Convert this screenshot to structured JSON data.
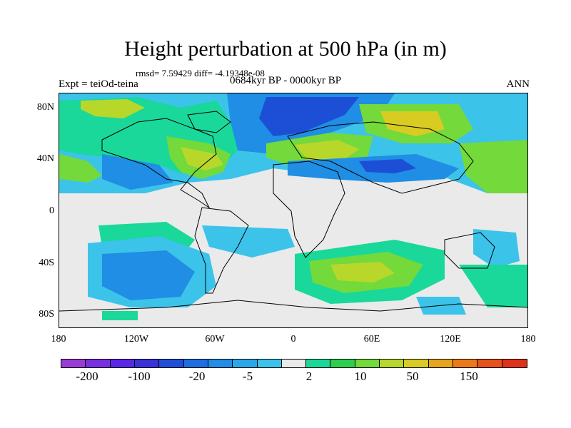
{
  "title": "Height perturbation at 500 hPa (in m)",
  "stats": "rmsd= 7.59429  diff= -4.19348e-08",
  "experiment": "Expt = teiOd-teina",
  "period": "0684kyr BP - 0000kyr BP",
  "season": "ANN",
  "latitude_labels": [
    "80N",
    "40N",
    "0",
    "40S",
    "80S"
  ],
  "longitude_labels": [
    "180",
    "120W",
    "60W",
    "0",
    "60E",
    "120E",
    "180"
  ],
  "colorbar": {
    "colors": [
      "#9b3bd6",
      "#7a2fe0",
      "#5a28e6",
      "#3a31d9",
      "#1f4fd8",
      "#1c6fe0",
      "#1f8ee4",
      "#2aa7e6",
      "#3cc3ea",
      "#eaeaea",
      "#19d89a",
      "#2ecf4f",
      "#74d93a",
      "#b8d72b",
      "#d8cc22",
      "#e5a61c",
      "#ea7a1a",
      "#e8521b",
      "#e0311b"
    ],
    "labels": [
      "-200",
      "-100",
      "-20",
      "-5",
      "2",
      "10",
      "50",
      "150"
    ]
  },
  "field_legend": {
    "map": "neutral",
    "strong_negative": "#1c4fd6",
    "negative": "#1f8ee4",
    "weak_negative": "#3cc3ea",
    "weak_positive": "#19d89a",
    "positive": "#74d93a",
    "strong_positive": "#b8d72b"
  }
}
